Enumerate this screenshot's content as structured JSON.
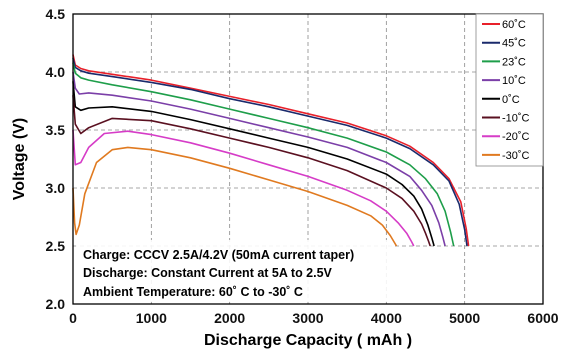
{
  "chart_data": {
    "type": "line",
    "xlabel": "Discharge Capacity ( mAh )",
    "ylabel": "Voltage (V)",
    "xlim": [
      0,
      6000
    ],
    "ylim": [
      2.0,
      4.5
    ],
    "xticks": [
      "0",
      "1000",
      "2000",
      "3000",
      "4000",
      "5000",
      "6000"
    ],
    "yticks": [
      "2.0",
      "2.5",
      "3.0",
      "3.5",
      "4.0",
      "4.5"
    ],
    "grid": true,
    "legend_position": "top-right",
    "annotations": [
      "Charge: CCCV 2.5A/4.2V (50mA current taper)",
      "Discharge: Constant Current at 5A to 2.5V",
      "Ambient Temperature: 60˚ C to -30˚ C"
    ],
    "series": [
      {
        "name": "60˚C",
        "color": "#e8202a",
        "x": [
          0,
          30,
          100,
          200,
          500,
          1000,
          1500,
          2000,
          2500,
          3000,
          3500,
          4000,
          4300,
          4600,
          4800,
          4950,
          5020,
          5050
        ],
        "y": [
          4.15,
          4.06,
          4.03,
          4.01,
          3.98,
          3.93,
          3.86,
          3.79,
          3.72,
          3.64,
          3.56,
          3.45,
          3.36,
          3.22,
          3.08,
          2.88,
          2.65,
          2.5
        ]
      },
      {
        "name": "45˚C",
        "color": "#1a2a6c",
        "x": [
          0,
          30,
          100,
          200,
          500,
          1000,
          1500,
          2000,
          2500,
          3000,
          3500,
          4000,
          4300,
          4600,
          4800,
          4930,
          5000,
          5030
        ],
        "y": [
          4.12,
          4.04,
          4.01,
          3.99,
          3.96,
          3.91,
          3.85,
          3.77,
          3.7,
          3.62,
          3.54,
          3.43,
          3.34,
          3.2,
          3.06,
          2.86,
          2.64,
          2.5
        ]
      },
      {
        "name": "23˚C",
        "color": "#1e9e4a",
        "x": [
          0,
          30,
          100,
          200,
          500,
          1000,
          1500,
          2000,
          2500,
          3000,
          3500,
          4000,
          4300,
          4500,
          4650,
          4750,
          4820,
          4860
        ],
        "y": [
          4.08,
          3.99,
          3.95,
          3.93,
          3.89,
          3.83,
          3.76,
          3.68,
          3.6,
          3.52,
          3.43,
          3.31,
          3.2,
          3.08,
          2.95,
          2.8,
          2.62,
          2.5
        ]
      },
      {
        "name": "10˚C",
        "color": "#7b3fa8",
        "x": [
          0,
          30,
          80,
          200,
          500,
          1000,
          1500,
          2000,
          2500,
          3000,
          3500,
          4000,
          4300,
          4450,
          4580,
          4670,
          4720,
          4750
        ],
        "y": [
          4.0,
          3.86,
          3.81,
          3.82,
          3.8,
          3.75,
          3.68,
          3.6,
          3.52,
          3.44,
          3.35,
          3.22,
          3.1,
          2.98,
          2.85,
          2.7,
          2.58,
          2.5
        ]
      },
      {
        "name": "0˚C",
        "color": "#000000",
        "x": [
          0,
          30,
          100,
          200,
          500,
          1000,
          1500,
          2000,
          2500,
          3000,
          3500,
          4000,
          4200,
          4350,
          4450,
          4530,
          4580,
          4610
        ],
        "y": [
          3.92,
          3.7,
          3.67,
          3.69,
          3.7,
          3.66,
          3.59,
          3.51,
          3.43,
          3.35,
          3.25,
          3.12,
          3.03,
          2.93,
          2.82,
          2.68,
          2.57,
          2.5
        ]
      },
      {
        "name": "-10˚C",
        "color": "#5a1020",
        "x": [
          0,
          30,
          100,
          200,
          500,
          1000,
          1500,
          2000,
          2500,
          3000,
          3500,
          4000,
          4200,
          4350,
          4450,
          4500,
          4540,
          4560
        ],
        "y": [
          3.8,
          3.55,
          3.47,
          3.52,
          3.6,
          3.58,
          3.51,
          3.43,
          3.35,
          3.26,
          3.15,
          3.0,
          2.91,
          2.8,
          2.69,
          2.61,
          2.54,
          2.5
        ]
      },
      {
        "name": "-20˚C",
        "color": "#d63cc7",
        "x": [
          0,
          30,
          100,
          200,
          400,
          700,
          1000,
          1500,
          2000,
          2500,
          3000,
          3500,
          3800,
          4000,
          4150,
          4260,
          4320,
          4350
        ],
        "y": [
          3.5,
          3.2,
          3.22,
          3.35,
          3.47,
          3.49,
          3.46,
          3.39,
          3.3,
          3.2,
          3.1,
          2.98,
          2.89,
          2.8,
          2.7,
          2.61,
          2.54,
          2.5
        ]
      },
      {
        "name": "-30˚C",
        "color": "#e07a20",
        "x": [
          0,
          20,
          40,
          80,
          150,
          300,
          500,
          700,
          1000,
          1500,
          2000,
          2500,
          3000,
          3500,
          3800,
          3950,
          4050,
          4130
        ],
        "y": [
          3.0,
          2.7,
          2.6,
          2.68,
          2.95,
          3.22,
          3.33,
          3.35,
          3.33,
          3.26,
          3.17,
          3.07,
          2.97,
          2.85,
          2.76,
          2.68,
          2.59,
          2.5
        ]
      }
    ]
  }
}
